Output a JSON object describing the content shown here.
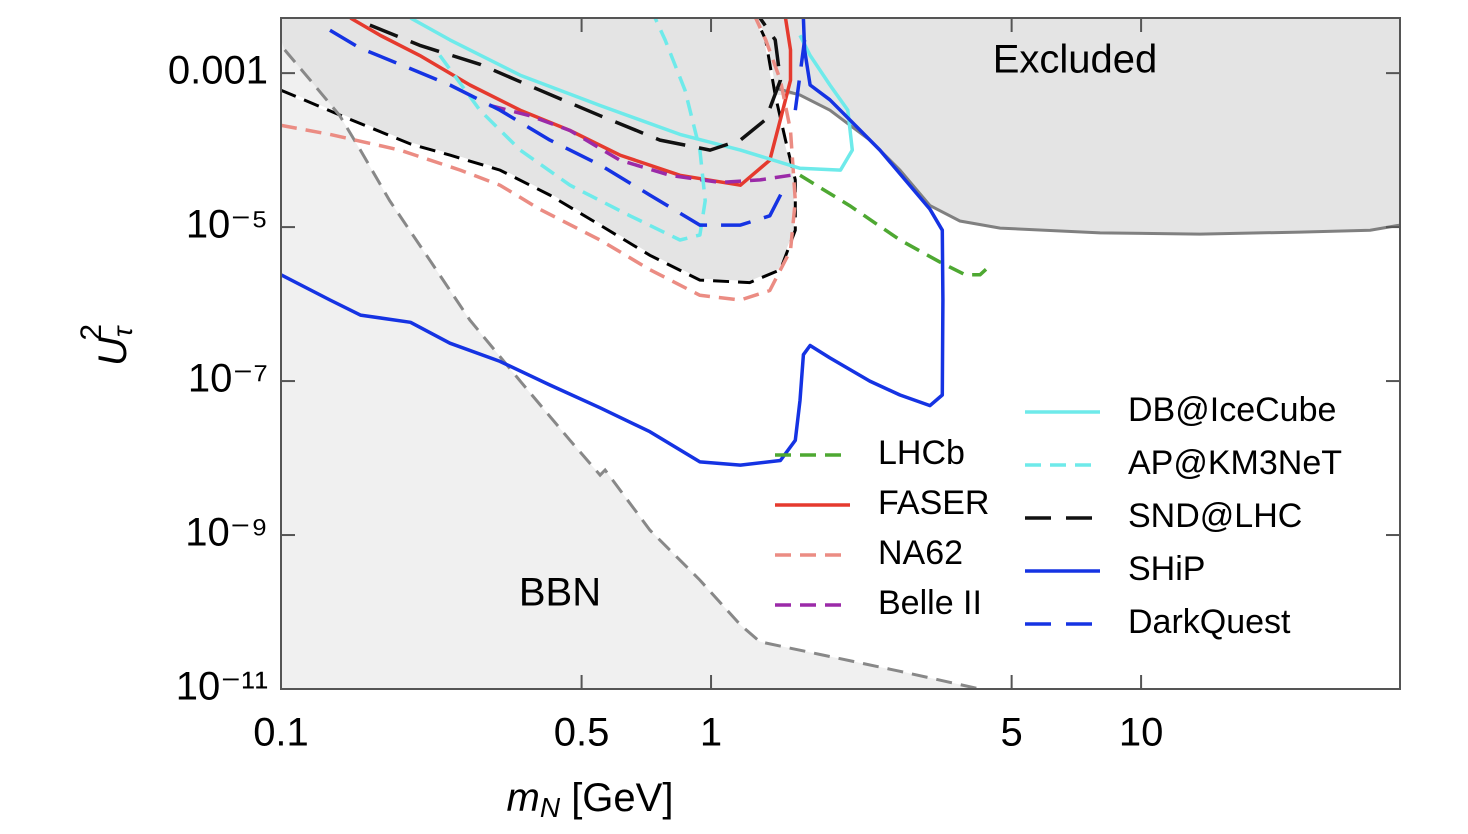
{
  "chart_data": {
    "type": "line",
    "xlabel": {
      "base": "m",
      "sub": "N",
      "rest": " [GeV]"
    },
    "ylabel": {
      "base": "U",
      "sub": "τ",
      "sup": "2"
    },
    "xscale": "log",
    "yscale": "log",
    "xlim": [
      0.1,
      40
    ],
    "ylim": [
      1e-11,
      0.0052
    ],
    "xticks": [
      0.1,
      0.5,
      1,
      5,
      10
    ],
    "yticks": [
      {
        "value": 1e-11,
        "label": "10⁻¹¹"
      },
      {
        "value": 1e-09,
        "label": "10⁻⁹"
      },
      {
        "value": 1e-07,
        "label": "10⁻⁷"
      },
      {
        "value": 1e-05,
        "label": "10⁻⁵"
      },
      0.001
    ],
    "grid": false,
    "legend": {
      "loc": "lower right",
      "columns": 2
    },
    "areas": [
      {
        "name": "Excluded",
        "fill": "#e4e4e4",
        "to": "top",
        "label_color": "#000000",
        "x": [
          0.1,
          0.145,
          0.2,
          0.247,
          0.323,
          0.422,
          0.552,
          0.721,
          0.942,
          1.23,
          1.45,
          1.57,
          1.57,
          1.49,
          1.41,
          1.61,
          1.89,
          2.34,
          2.75,
          3.23,
          3.79,
          4.7,
          8.03,
          13.7,
          23.4,
          34.1,
          40
        ],
        "y": [
          0.0006,
          0.00025,
          0.00012,
          8.6e-05,
          5.5e-05,
          2.6e-05,
          1.06e-05,
          4.3e-06,
          2.05e-06,
          1.9e-06,
          2.8e-06,
          9.1e-06,
          4.1e-05,
          0.000135,
          0.00052,
          0.00052,
          0.00033,
          0.000135,
          5.5e-05,
          1.9e-05,
          1.2e-05,
          9.7e-06,
          8.4e-06,
          8.1e-06,
          8.6e-06,
          9.1e-06,
          1.06e-05
        ]
      },
      {
        "name": "BBN",
        "fill": "#f0f0f0",
        "to": "bottom",
        "label_color": "#888888",
        "x": [
          0.1,
          0.102,
          0.117,
          0.137,
          0.153,
          0.179,
          0.222,
          0.275,
          0.36,
          0.47,
          0.552,
          0.567,
          0.721,
          0.942,
          1.17,
          1.3,
          1.8,
          2.75,
          4.22
        ],
        "y": [
          0.0027,
          0.002,
          0.00081,
          0.00028,
          0.0001,
          2.2e-05,
          3.7e-06,
          6.2e-07,
          1e-07,
          1.7e-08,
          6e-09,
          7e-09,
          1.16e-09,
          2.6e-10,
          6.8e-11,
          4.1e-11,
          2.8e-11,
          1.7e-11,
          1e-11
        ]
      }
    ],
    "boundaries": [
      {
        "color": "#000000",
        "gap_color": "#ffffff",
        "dash": "dashed",
        "x": [
          0.1,
          0.145,
          0.2,
          0.247,
          0.323,
          0.422,
          0.552,
          0.721,
          0.942,
          1.23,
          1.45,
          1.57,
          1.57,
          1.49,
          1.41,
          1.34,
          1.27
        ],
        "y": [
          0.0006,
          0.00025,
          0.00012,
          8.6e-05,
          5.5e-05,
          2.6e-05,
          1.06e-05,
          4.3e-06,
          2.05e-06,
          1.9e-06,
          2.8e-06,
          9.1e-06,
          4.1e-05,
          0.000135,
          0.00052,
          0.0027,
          0.0052
        ]
      },
      {
        "color": "#808080",
        "dash": "solid",
        "x": [
          1.41,
          1.61,
          1.89,
          2.34,
          2.75,
          3.23,
          3.79,
          4.7,
          8.03,
          13.7,
          23.4,
          34.1,
          40
        ],
        "y": [
          0.00064,
          0.00052,
          0.00033,
          0.000135,
          5.5e-05,
          1.9e-05,
          1.2e-05,
          9.7e-06,
          8.4e-06,
          8.1e-06,
          8.6e-06,
          9.1e-06,
          1.06e-05
        ]
      },
      {
        "color": "#888888",
        "dash": "dashed",
        "x": [
          0.102,
          0.117,
          0.137,
          0.153,
          0.179,
          0.222,
          0.275,
          0.36,
          0.47,
          0.552,
          0.567,
          0.721,
          0.942,
          1.17,
          1.3,
          1.8,
          2.75,
          4.22
        ],
        "y": [
          0.002,
          0.00081,
          0.00028,
          0.0001,
          2.2e-05,
          3.7e-06,
          6.2e-07,
          1e-07,
          1.7e-08,
          6e-09,
          7e-09,
          1.16e-09,
          2.6e-10,
          6.8e-11,
          4.1e-11,
          2.8e-11,
          1.7e-11,
          1e-11
        ]
      }
    ],
    "series": [
      {
        "name": "LHCb",
        "color": "#4ea832",
        "dash": "dashed",
        "x": [
          1.61,
          2.1,
          2.75,
          3.41,
          3.9,
          4.22,
          4.38
        ],
        "values": [
          4.7e-05,
          1.9e-05,
          6.8e-06,
          3.5e-06,
          2.4e-06,
          2.4e-06,
          2.9e-06
        ]
      },
      {
        "name": "FASER",
        "color": "#e53a2e",
        "dash": "solid",
        "x": [
          0.145,
          0.17,
          0.21,
          0.275,
          0.36,
          0.47,
          0.614,
          0.847,
          1.17,
          1.37,
          1.45,
          1.53,
          1.53,
          1.49
        ],
        "values": [
          0.0052,
          0.0031,
          0.0017,
          0.0007,
          0.00033,
          0.00018,
          8.6e-05,
          4.7e-05,
          3.5e-05,
          7.4e-05,
          0.00025,
          0.00081,
          0.002,
          0.0052
        ]
      },
      {
        "name": "NA62",
        "color": "#eb8c83",
        "dash": "dashed",
        "x": [
          0.1,
          0.13,
          0.189,
          0.261,
          0.323,
          0.4,
          0.552,
          0.721,
          0.942,
          1.17,
          1.37,
          1.53,
          1.57,
          1.53,
          1.45,
          1.34,
          1.27
        ],
        "values": [
          0.00021,
          0.00016,
          0.0001,
          5.5e-05,
          3.5e-05,
          1.7e-05,
          6.8e-06,
          2.8e-06,
          1.3e-06,
          1.13e-06,
          1.5e-06,
          5e-06,
          2.2e-05,
          0.00018,
          0.00081,
          0.0027,
          0.0052
        ]
      },
      {
        "name": "Belle II",
        "color": "#9b2aa8",
        "dash": "dashed",
        "x": [
          0.306,
          0.379,
          0.47,
          0.614,
          0.803,
          1.05,
          1.3,
          1.53
        ],
        "values": [
          0.00038,
          0.00028,
          0.00018,
          7.4e-05,
          4.7e-05,
          3.8e-05,
          4.1e-05,
          4.7e-05
        ]
      },
      {
        "name": "DB@IceCube",
        "color": "#6eeaea",
        "dash": "solid",
        "x": [
          0.2,
          0.247,
          0.36,
          0.552,
          0.847,
          1.17,
          1.61,
          2.0,
          2.13,
          2.08,
          1.89,
          1.7,
          1.61
        ],
        "values": [
          0.0052,
          0.0027,
          0.00094,
          0.00038,
          0.00016,
          0.0001,
          5.8e-05,
          5.5e-05,
          0.0001,
          0.00033,
          0.0007,
          0.0017,
          0.0031
        ]
      },
      {
        "name": "AP@KM3NeT",
        "color": "#6eeaea",
        "dash": "dashed",
        "x": [
          0.234,
          0.29,
          0.36,
          0.47,
          0.648,
          0.847,
          0.942,
          0.969,
          0.942,
          0.87,
          0.782,
          0.741
        ],
        "values": [
          0.0017,
          0.00033,
          0.0001,
          3.5e-05,
          1.4e-05,
          6.8e-06,
          7.9e-06,
          2.2e-05,
          0.0001,
          0.0006,
          0.0027,
          0.0052
        ]
      },
      {
        "name": "SND@LHC",
        "color": "#111111",
        "dash": "long-dashed",
        "x": [
          0.161,
          0.21,
          0.29,
          0.4,
          0.552,
          0.761,
          0.995,
          1.17,
          1.34,
          1.45,
          1.41,
          1.3
        ],
        "values": [
          0.0042,
          0.0023,
          0.0013,
          0.0006,
          0.00028,
          0.000135,
          0.0001,
          0.000135,
          0.00025,
          0.00081,
          0.0027,
          0.0052
        ]
      },
      {
        "name": "SHiP",
        "color": "#1533e3",
        "dash": "solid",
        "x": [
          0.1,
          0.13,
          0.153,
          0.2,
          0.247,
          0.323,
          0.422,
          0.552,
          0.721,
          0.942,
          1.17,
          1.45,
          1.57,
          1.61,
          1.64,
          1.7,
          1.89,
          2.34,
          2.75,
          3.23,
          3.45,
          3.46,
          3.45,
          3.23,
          2.47,
          1.89,
          1.7,
          1.65,
          1.64
        ],
        "values": [
          2.4e-06,
          1.13e-06,
          7.2e-07,
          5.8e-07,
          3.1e-07,
          1.8e-07,
          8.9e-08,
          4.5e-08,
          2.2e-08,
          8.9e-09,
          8.1e-09,
          9.3e-09,
          1.7e-08,
          5.6e-08,
          2.2e-07,
          2.9e-07,
          2e-07,
          1e-07,
          6.6e-08,
          4.8e-08,
          6.6e-08,
          1.13e-06,
          9.1e-06,
          1.7e-05,
          0.0001,
          0.00045,
          0.0007,
          0.002,
          0.0052
        ]
      },
      {
        "name": "DarkQuest",
        "color": "#1533e3",
        "dash": "long-dashed",
        "x": [
          0.13,
          0.153,
          0.189,
          0.247,
          0.323,
          0.422,
          0.552,
          0.721,
          0.942,
          1.17,
          1.37,
          1.49,
          null,
          1.57,
          1.65
        ],
        "values": [
          0.0036,
          0.0021,
          0.0013,
          0.0007,
          0.00033,
          0.000135,
          6.4e-05,
          2.6e-05,
          1.06e-05,
          1.06e-05,
          1.4e-05,
          3.5e-05,
          null,
          0.00033,
          0.0027
        ]
      }
    ]
  }
}
